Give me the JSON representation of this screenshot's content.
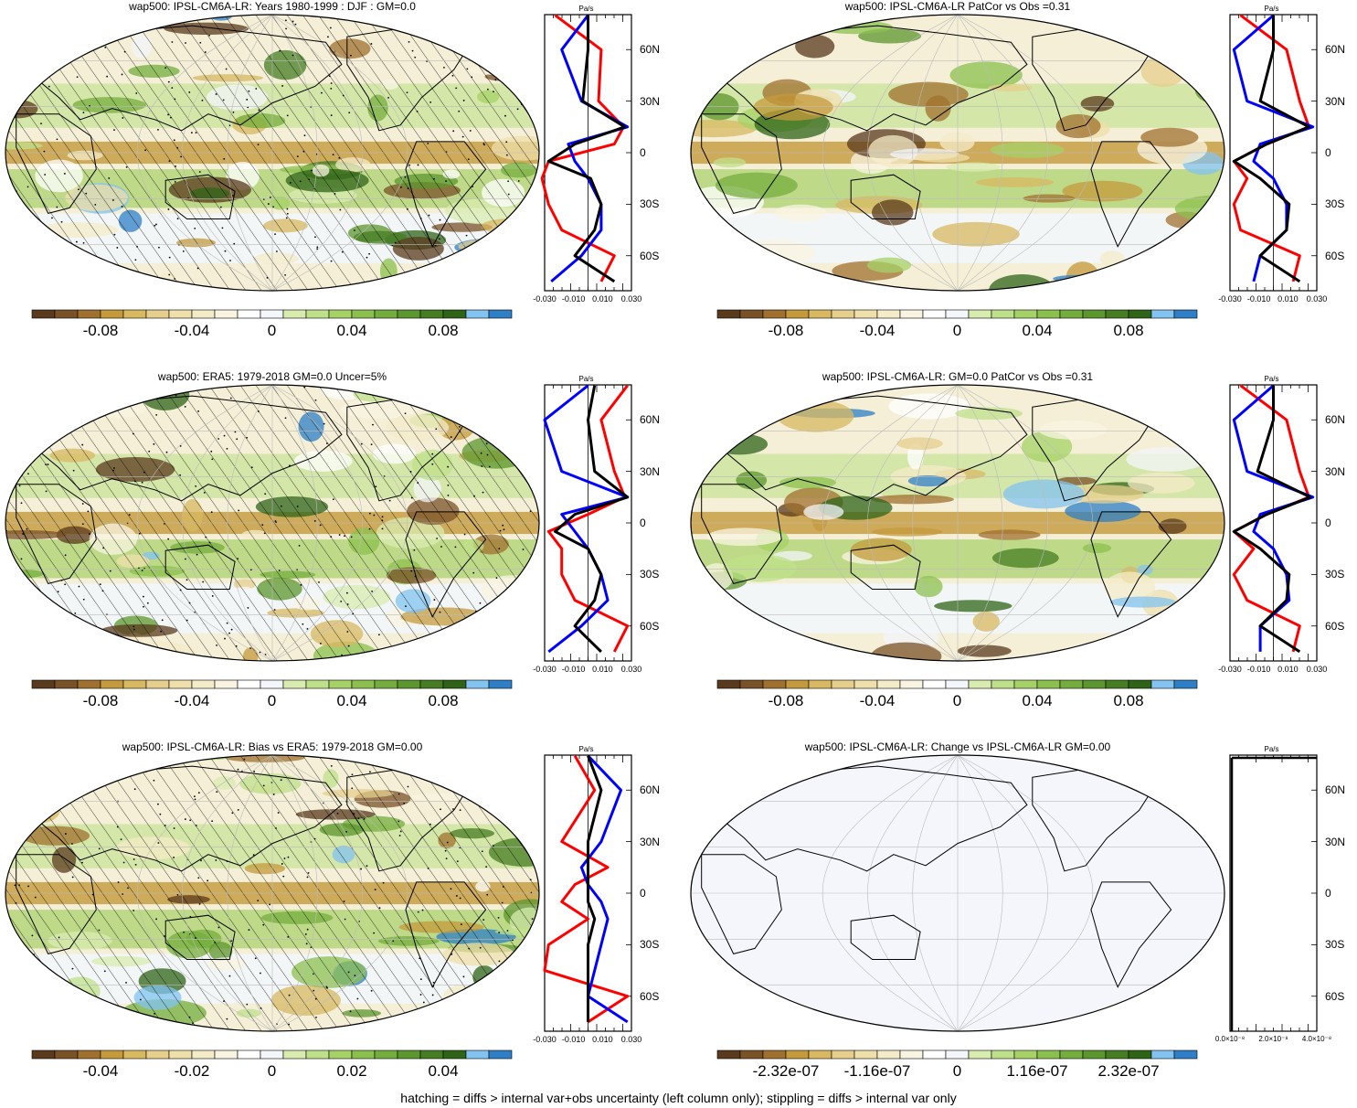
{
  "footer": "hatching = diffs > internal var+obs uncertainty (left column only); stippling = diffs > internal var only",
  "unit": "Pa/s",
  "lat_labels": [
    "60N",
    "30N",
    "0",
    "30S",
    "60S"
  ],
  "profile_ticks": [
    "-0.030",
    "-0.010",
    "0.010",
    "0.030"
  ],
  "profile_ticks_change": [
    "0.0×10⁻⁸",
    "2.0×10⁻⁸",
    "4.0×10⁻⁸"
  ],
  "colormap": [
    "#5a3a1c",
    "#7a5228",
    "#a0702e",
    "#c49a3c",
    "#d8b860",
    "#e6cf8c",
    "#efdfaa",
    "#f4ebc8",
    "#f9f4e2",
    "#ffffff",
    "#f3f6fb",
    "#d9ecb0",
    "#bfe08a",
    "#a6d166",
    "#8cc04e",
    "#74ad3e",
    "#5c962e",
    "#467c22",
    "#2f6418",
    "#82c3f0",
    "#2e7fc6"
  ],
  "panels": [
    {
      "title": "wap500: IPSL-CM6A-LR: Years 1980-1999 : DJF : GM=0.0",
      "cb_labels": [
        "-0.08",
        "-0.04",
        "0",
        "0.04",
        "0.08"
      ],
      "hatched": true
    },
    {
      "title": "wap500: IPSL-CM6A-LR PatCor vs Obs =0.31",
      "cb_labels": [
        "-0.08",
        "-0.04",
        "0",
        "0.04",
        "0.08"
      ],
      "hatched": false
    },
    {
      "title": "wap500: ERA5: 1979-2018 GM=0.0 Uncer=5%",
      "cb_labels": [
        "-0.08",
        "-0.04",
        "0",
        "0.04",
        "0.08"
      ],
      "hatched": true
    },
    {
      "title": "wap500: IPSL-CM6A-LR: GM=0.0 PatCor vs Obs =0.31",
      "cb_labels": [
        "-0.08",
        "-0.04",
        "0",
        "0.04",
        "0.08"
      ],
      "hatched": false
    },
    {
      "title": "wap500: IPSL-CM6A-LR: Bias vs ERA5: 1979-2018 GM=0.00",
      "cb_labels": [
        "-0.04",
        "-0.02",
        "0",
        "0.02",
        "0.04"
      ],
      "hatched": true
    },
    {
      "title": "wap500: IPSL-CM6A-LR: Change vs IPSL-CM6A-LR GM=0.00",
      "cb_labels": [
        "-2.32e-07",
        "-1.16e-07",
        "0",
        "1.16e-07",
        "2.32e-07"
      ],
      "hatched": false,
      "blank": true
    }
  ],
  "chart_data": {
    "type": "line",
    "xlabel": "Pa/s",
    "x_ticks": [
      -0.03,
      -0.01,
      0.01,
      0.03
    ],
    "y_ticks": [
      "60N",
      "30N",
      "0",
      "30S",
      "60S"
    ],
    "y": [
      80,
      60,
      30,
      15,
      5,
      -5,
      -15,
      -30,
      -45,
      -60,
      -75
    ],
    "profiles": [
      {
        "panel": 1,
        "series": [
          {
            "color": "#ff0000",
            "values": [
              -0.025,
              0.01,
              0.008,
              0.027,
              0.02,
              -0.03,
              -0.035,
              -0.03,
              -0.02,
              0.02,
              0.01
            ]
          },
          {
            "color": "#0000ff",
            "values": [
              0.0,
              -0.02,
              -0.005,
              0.03,
              -0.015,
              -0.01,
              0.0,
              0.01,
              0.01,
              -0.005,
              -0.028
            ]
          },
          {
            "color": "#000000",
            "values": [
              0.0,
              0.0,
              -0.004,
              0.028,
              -0.01,
              -0.03,
              0.002,
              0.01,
              0.005,
              -0.01,
              0.02
            ]
          }
        ]
      },
      {
        "panel": 2,
        "series": [
          {
            "color": "#ff0000",
            "values": [
              -0.025,
              0.01,
              0.02,
              0.027,
              -0.005,
              -0.03,
              -0.02,
              -0.03,
              -0.025,
              0.02,
              0.015
            ]
          },
          {
            "color": "#0000ff",
            "values": [
              0.0,
              -0.03,
              -0.02,
              0.03,
              -0.01,
              -0.015,
              0.0,
              0.01,
              0.01,
              -0.01,
              -0.015
            ]
          },
          {
            "color": "#000000",
            "values": [
              0.0,
              0.0,
              -0.01,
              0.027,
              -0.005,
              -0.03,
              -0.01,
              0.012,
              0.01,
              -0.01,
              0.02
            ]
          }
        ]
      },
      {
        "panel": 3,
        "series": [
          {
            "color": "#ff0000",
            "values": [
              0.03,
              0.01,
              0.02,
              0.028,
              0.0,
              -0.03,
              -0.02,
              -0.02,
              -0.01,
              0.03,
              0.02
            ]
          },
          {
            "color": "#0000ff",
            "values": [
              0.0,
              -0.033,
              -0.02,
              0.03,
              -0.02,
              -0.01,
              0.0,
              0.01,
              0.015,
              -0.005,
              -0.03
            ]
          },
          {
            "color": "#000000",
            "values": [
              0.005,
              0.0,
              0.005,
              0.03,
              -0.01,
              -0.025,
              0.0,
              0.01,
              0.005,
              -0.01,
              0.01
            ]
          }
        ]
      },
      {
        "panel": 4,
        "series": [
          {
            "color": "#ff0000",
            "values": [
              -0.025,
              0.01,
              0.02,
              0.027,
              -0.005,
              -0.03,
              -0.015,
              -0.03,
              -0.02,
              0.02,
              0.015
            ]
          },
          {
            "color": "#0000ff",
            "values": [
              0.0,
              -0.03,
              -0.02,
              0.03,
              -0.01,
              -0.015,
              0.0,
              0.01,
              0.012,
              -0.01,
              -0.01
            ]
          },
          {
            "color": "#000000",
            "values": [
              0.0,
              0.0,
              -0.012,
              0.028,
              -0.005,
              -0.03,
              -0.01,
              0.012,
              0.01,
              -0.01,
              0.02
            ]
          }
        ]
      },
      {
        "panel": 5,
        "series": [
          {
            "color": "#ff0000",
            "values": [
              -0.01,
              0.005,
              -0.02,
              0.015,
              -0.01,
              -0.02,
              0.0,
              -0.03,
              -0.033,
              0.03,
              0.0
            ]
          },
          {
            "color": "#0000ff",
            "values": [
              0.0,
              0.025,
              0.01,
              -0.005,
              0.0,
              0.01,
              0.015,
              0.01,
              0.005,
              0.0,
              0.03
            ]
          },
          {
            "color": "#000000",
            "values": [
              0.0,
              0.01,
              0.0,
              0.0,
              0.0,
              0.0,
              0.005,
              0.0,
              0.0,
              0.0,
              0.0
            ]
          }
        ]
      }
    ]
  }
}
